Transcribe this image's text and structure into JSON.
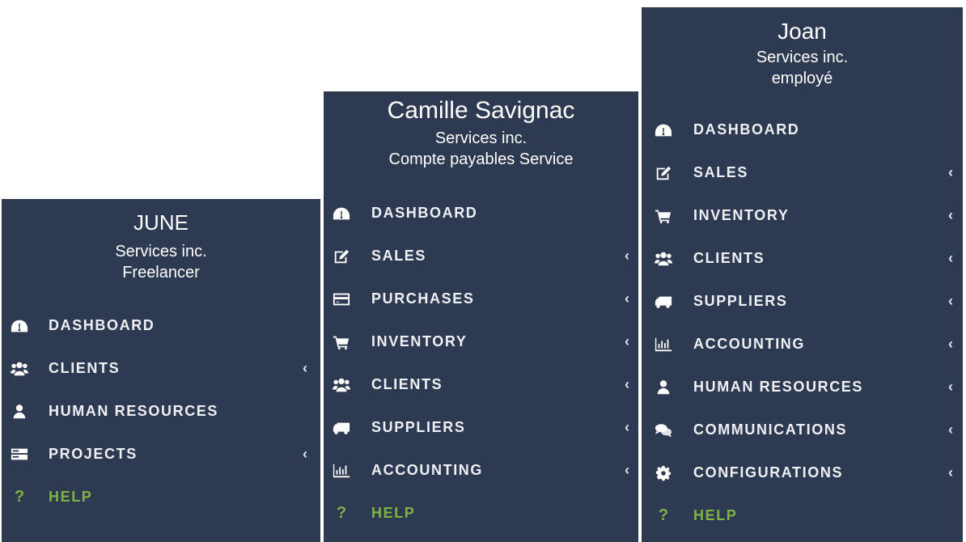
{
  "colors": {
    "panel_bg": "#2e3a52",
    "text": "#ffffff",
    "help": "#7cb342"
  },
  "panels": [
    {
      "user": {
        "name": "JUNE",
        "company": "Services inc.",
        "role": "Freelancer"
      },
      "items": [
        {
          "label": "DASHBOARD",
          "icon": "dashboard-icon",
          "chevron": false
        },
        {
          "label": "CLIENTS",
          "icon": "users-icon",
          "chevron": true
        },
        {
          "label": "HUMAN RESOURCES",
          "icon": "user-icon",
          "chevron": false
        },
        {
          "label": "PROJECTS",
          "icon": "server-icon",
          "chevron": true
        },
        {
          "label": "HELP",
          "icon": "question-icon",
          "chevron": false,
          "help": true
        }
      ]
    },
    {
      "user": {
        "name": "Camille Savignac",
        "company": "Services inc.",
        "role": "Compte payables Service"
      },
      "items": [
        {
          "label": "DASHBOARD",
          "icon": "dashboard-icon",
          "chevron": false
        },
        {
          "label": "SALES",
          "icon": "edit-icon",
          "chevron": true
        },
        {
          "label": "PURCHASES",
          "icon": "credit-card-icon",
          "chevron": true
        },
        {
          "label": "INVENTORY",
          "icon": "cart-icon",
          "chevron": true
        },
        {
          "label": "CLIENTS",
          "icon": "users-icon",
          "chevron": true
        },
        {
          "label": "SUPPLIERS",
          "icon": "truck-icon",
          "chevron": true
        },
        {
          "label": "ACCOUNTING",
          "icon": "bar-chart-icon",
          "chevron": true
        },
        {
          "label": "HELP",
          "icon": "question-icon",
          "chevron": false,
          "help": true
        }
      ]
    },
    {
      "user": {
        "name": "Joan",
        "company": "Services inc.",
        "role": "employé"
      },
      "items": [
        {
          "label": "DASHBOARD",
          "icon": "dashboard-icon",
          "chevron": false
        },
        {
          "label": "SALES",
          "icon": "edit-icon",
          "chevron": true
        },
        {
          "label": "INVENTORY",
          "icon": "cart-icon",
          "chevron": true
        },
        {
          "label": "CLIENTS",
          "icon": "users-icon",
          "chevron": true
        },
        {
          "label": "SUPPLIERS",
          "icon": "truck-icon",
          "chevron": true
        },
        {
          "label": "ACCOUNTING",
          "icon": "bar-chart-icon",
          "chevron": true
        },
        {
          "label": "HUMAN RESOURCES",
          "icon": "user-icon",
          "chevron": true
        },
        {
          "label": "COMMUNICATIONS",
          "icon": "comments-icon",
          "chevron": true
        },
        {
          "label": "CONFIGURATIONS",
          "icon": "gear-icon",
          "chevron": true
        },
        {
          "label": "HELP",
          "icon": "question-icon",
          "chevron": false,
          "help": true
        }
      ]
    }
  ],
  "chevron_glyph": "‹",
  "help_glyph": "?"
}
